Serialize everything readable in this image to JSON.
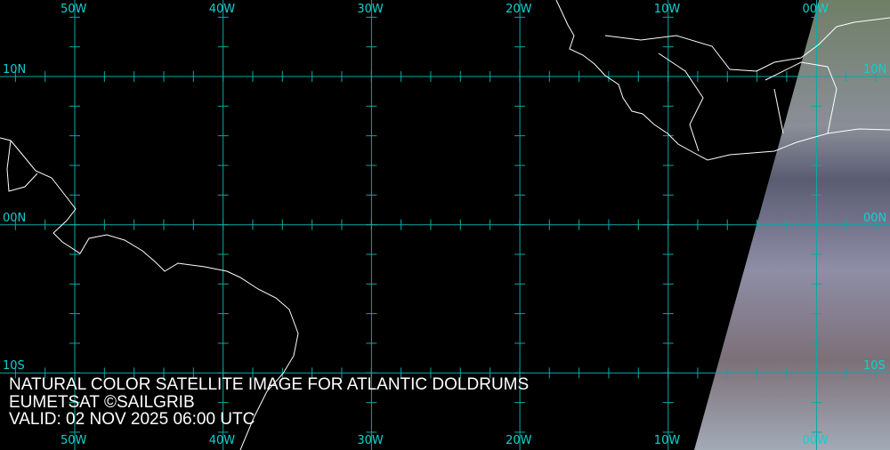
{
  "caption": {
    "title": "NATURAL COLOR SATELLITE IMAGE FOR ATLANTIC DOLDRUMS",
    "credit": "EUMETSAT ©SAILGRIB",
    "valid": "VALID:  02 NOV 2025 06:00 UTC"
  },
  "longitudes": [
    "50W",
    "40W",
    "30W",
    "20W",
    "10W",
    "00W"
  ],
  "latitudes": [
    "10N",
    "00N",
    "10S"
  ],
  "colors": {
    "grid": "#0aa8a8",
    "label": "#10d0d0",
    "coastline": "#ffffff",
    "background": "#000000"
  }
}
